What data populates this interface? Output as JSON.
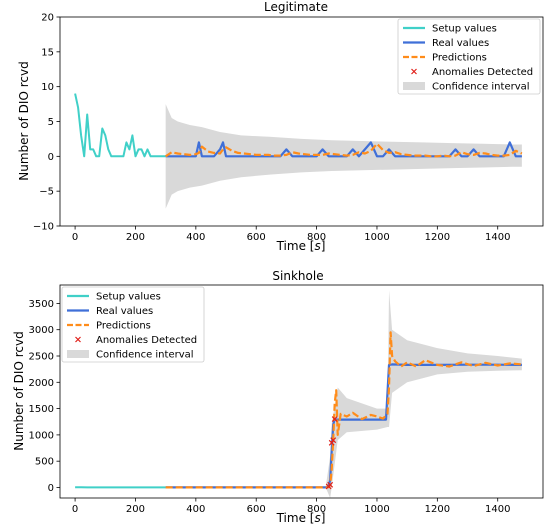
{
  "colors": {
    "setup": "#40d0c8",
    "real": "#3f6fd8",
    "pred": "#ff8c1a",
    "anomaly": "#e0201a",
    "ci": "#d9d9d9"
  },
  "legend": {
    "setup": "Setup values",
    "real": "Real values",
    "pred": "Predictions",
    "anomaly": "Anomalies Detected",
    "ci": "Confidence interval"
  },
  "chart_data": [
    {
      "type": "line",
      "title": "Legitimate",
      "xlabel": "Time [s]",
      "ylabel": "Number of  DIO rcvd",
      "xlim": [
        -50,
        1550
      ],
      "ylim": [
        -10,
        20
      ],
      "xticks": [
        0,
        200,
        400,
        600,
        800,
        1000,
        1200,
        1400
      ],
      "yticks": [
        -10,
        -5,
        0,
        5,
        10,
        15,
        20
      ],
      "legend_position": "top-right",
      "grid": false,
      "series": [
        {
          "name": "Setup values",
          "x": [
            0,
            10,
            20,
            30,
            40,
            50,
            60,
            70,
            80,
            90,
            100,
            110,
            120,
            130,
            140,
            150,
            160,
            170,
            180,
            190,
            200,
            210,
            220,
            230,
            240,
            250,
            260,
            270,
            280,
            290,
            300
          ],
          "values": [
            9,
            7,
            3,
            0,
            6,
            1,
            1,
            0,
            0,
            4,
            3,
            1,
            0,
            0,
            0,
            0,
            0,
            2,
            1,
            3,
            0,
            1,
            1,
            0,
            1,
            0,
            0,
            0,
            0,
            0,
            0
          ]
        },
        {
          "name": "Real values",
          "x": [
            300,
            320,
            340,
            360,
            380,
            400,
            410,
            420,
            440,
            460,
            480,
            490,
            500,
            520,
            540,
            560,
            580,
            600,
            620,
            640,
            660,
            680,
            700,
            720,
            740,
            760,
            780,
            800,
            820,
            840,
            860,
            880,
            900,
            920,
            940,
            960,
            980,
            1000,
            1020,
            1040,
            1060,
            1080,
            1100,
            1120,
            1140,
            1160,
            1180,
            1200,
            1220,
            1240,
            1260,
            1280,
            1300,
            1320,
            1340,
            1360,
            1380,
            1400,
            1420,
            1440,
            1460,
            1480
          ],
          "values": [
            0,
            0,
            0,
            0,
            0,
            0,
            2,
            0,
            0,
            0,
            1,
            2,
            0,
            0,
            0,
            0,
            0,
            0,
            0,
            0,
            0,
            0,
            1,
            0,
            0,
            0,
            0,
            0,
            1,
            0,
            0,
            0,
            0,
            1,
            0,
            1,
            2,
            0,
            0,
            1,
            0,
            0,
            0,
            0,
            0,
            0,
            0,
            0,
            0,
            0,
            1,
            0,
            0,
            1,
            0,
            0,
            0,
            0,
            0,
            2,
            0,
            0
          ]
        },
        {
          "name": "Predictions",
          "x": [
            300,
            320,
            340,
            360,
            380,
            400,
            410,
            420,
            440,
            460,
            480,
            490,
            500,
            520,
            540,
            560,
            580,
            600,
            620,
            640,
            660,
            680,
            700,
            720,
            740,
            760,
            780,
            800,
            820,
            840,
            860,
            880,
            900,
            920,
            940,
            960,
            980,
            1000,
            1020,
            1040,
            1060,
            1080,
            1100,
            1120,
            1140,
            1160,
            1180,
            1200,
            1220,
            1240,
            1260,
            1280,
            1300,
            1320,
            1340,
            1360,
            1380,
            1400,
            1420,
            1440,
            1460,
            1480
          ],
          "values": [
            0,
            0.6,
            0.4,
            0.3,
            0.2,
            0.3,
            0.5,
            1.4,
            0.7,
            0.5,
            0.4,
            1.0,
            1.3,
            0.8,
            0.5,
            0.4,
            0.3,
            0.2,
            0.2,
            0.2,
            0.1,
            0.1,
            0.2,
            0.6,
            0.4,
            0.3,
            0.2,
            0.2,
            0.2,
            0.4,
            0.3,
            0.2,
            0.1,
            0.2,
            0.6,
            0.4,
            0.8,
            1.8,
            0.9,
            0.5,
            0.6,
            0.3,
            0.2,
            0.1,
            0.1,
            0.1,
            0.0,
            0.0,
            0.1,
            0.0,
            0.1,
            0.6,
            0.3,
            0.2,
            0.5,
            0.4,
            0.2,
            0.1,
            0.1,
            0.2,
            0.8,
            0.4
          ]
        }
      ],
      "confidence_interval": {
        "x": [
          300,
          320,
          340,
          380,
          420,
          480,
          550,
          650,
          750,
          850,
          950,
          1050,
          1150,
          1250,
          1350,
          1450,
          1480
        ],
        "lower": [
          -7.5,
          -5.5,
          -5.0,
          -4.5,
          -4.2,
          -3.5,
          -3.0,
          -2.6,
          -2.3,
          -2.1,
          -2.0,
          -1.9,
          -1.8,
          -1.7,
          -1.6,
          -1.5,
          -1.5
        ],
        "upper": [
          7.5,
          5.5,
          5.0,
          4.5,
          4.2,
          3.5,
          3.0,
          2.8,
          2.5,
          2.3,
          2.2,
          2.1,
          2.0,
          1.9,
          1.8,
          1.7,
          1.7
        ]
      },
      "anomalies": []
    },
    {
      "type": "line",
      "title": "Sinkhole",
      "xlabel": "Time [s]",
      "ylabel": "Number of  DIO rcvd",
      "xlim": [
        -50,
        1550
      ],
      "ylim": [
        -200,
        3850
      ],
      "xticks": [
        0,
        200,
        400,
        600,
        800,
        1000,
        1200,
        1400
      ],
      "yticks": [
        0,
        500,
        1000,
        1500,
        2000,
        2500,
        3000,
        3500
      ],
      "legend_position": "top-left",
      "grid": false,
      "series": [
        {
          "name": "Setup values",
          "x": [
            0,
            20,
            40,
            60,
            80,
            100,
            150,
            200,
            250,
            300
          ],
          "values": [
            5,
            3,
            2,
            2,
            1,
            1,
            1,
            1,
            1,
            1
          ]
        },
        {
          "name": "Real values",
          "x": [
            300,
            500,
            700,
            830,
            840,
            845,
            850,
            855,
            860,
            870,
            900,
            950,
            1000,
            1030,
            1040,
            1050,
            1100,
            1200,
            1300,
            1400,
            1480
          ],
          "values": [
            1,
            1,
            1,
            1,
            20,
            150,
            700,
            1200,
            1290,
            1290,
            1290,
            1290,
            1290,
            1290,
            2330,
            2340,
            2330,
            2330,
            2335,
            2335,
            2330
          ]
        },
        {
          "name": "Predictions",
          "x": [
            300,
            500,
            700,
            830,
            840,
            845,
            850,
            855,
            860,
            865,
            870,
            880,
            900,
            920,
            950,
            980,
            1000,
            1020,
            1035,
            1040,
            1045,
            1050,
            1060,
            1080,
            1100,
            1130,
            1160,
            1200,
            1240,
            1280,
            1320,
            1360,
            1400,
            1440,
            1480
          ],
          "values": [
            1,
            1,
            1,
            1,
            5,
            50,
            350,
            900,
            1600,
            1850,
            1000,
            1400,
            1350,
            1420,
            1300,
            1380,
            1350,
            1310,
            1400,
            1900,
            2950,
            2500,
            2400,
            2300,
            2380,
            2300,
            2420,
            2330,
            2300,
            2380,
            2310,
            2370,
            2320,
            2360,
            2340
          ]
        }
      ],
      "confidence_interval": {
        "x": [
          300,
          830,
          845,
          850,
          870,
          900,
          1000,
          1035,
          1040,
          1050,
          1100,
          1200,
          1300,
          1400,
          1480
        ],
        "lower": [
          0,
          0,
          -200,
          0,
          900,
          1050,
          1100,
          1150,
          1150,
          1800,
          2000,
          2150,
          2200,
          2220,
          2230
        ],
        "upper": [
          0,
          0,
          600,
          1200,
          1900,
          1700,
          1500,
          1500,
          3750,
          3000,
          2800,
          2650,
          2550,
          2500,
          2450
        ]
      },
      "anomalies": [
        {
          "x": 840,
          "y": 20
        },
        {
          "x": 845,
          "y": 50
        },
        {
          "x": 850,
          "y": 850
        },
        {
          "x": 855,
          "y": 900
        },
        {
          "x": 860,
          "y": 1300
        }
      ]
    }
  ]
}
